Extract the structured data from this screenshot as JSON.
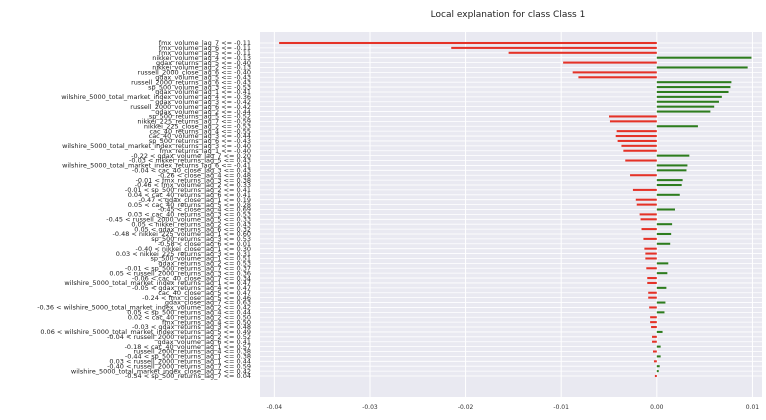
{
  "chart_data": {
    "type": "bar",
    "orientation": "horizontal",
    "title": "Local explanation for class Class 1",
    "xlabel": "",
    "ylabel": "",
    "xlim": [
      -0.0415,
      0.011
    ],
    "xticks": [
      -0.04,
      -0.03,
      -0.02,
      -0.01,
      0.0,
      0.01
    ],
    "xtick_labels": [
      "-0.04",
      "-0.03",
      "-0.02",
      "-0.01",
      "0.00",
      "0.01"
    ],
    "grid": true,
    "positive_color": "#2e7d1e",
    "negative_color": "#e53227",
    "background_color": "#e9e9f1",
    "grid_color": "#ffffff",
    "categories": [
      "fmx_volume_lag_7 <= -0.11",
      "fmx_volume_lag_6 <= -0.11",
      "fmx_volume_lag_5 <= -0.11",
      "nikkei_volume_lag_4 <= -0.13",
      "gdax_returns_lag_5 <= -0.40",
      "nikkei_volume_lag_2 <= -0.13",
      "russell_2000_close_lag_6 <= -0.40",
      "gdax_volume_lag_5 <= -0.43",
      "russell_2000_returns_lag_6 <= -0.43",
      "sp_500_volume_lag_3 <= -0.53",
      "gdax_volume_lag_1 <= -0.41",
      "wilshire_5000_total_market_index_volume_lag_4 <= -0.36",
      "gdax_volume_lag_3 <= -0.42",
      "russell_2000_volume_lag_6 <= -0.42",
      "gdax_volume_lag_2 <= -0.44",
      "sp_500_returns_lag_5 <= -0.52",
      "nikkei_225_returns_lag_7 <= -0.59",
      "nikkei_225_close_lag_2 <= -0.53",
      "cac_40_returns_lag_4 <= -0.55",
      "cac_40_volume_lag_3 <= -0.44",
      "sp_500_returns_lag_6 <= -0.43",
      "wilshire_5000_total_market_index_returns_lag_3 <= -0.40",
      "fmx_returns_lag_1 <= -0.40",
      "-0.22 < gdax_volume_lag_7 <= 0.20",
      "-0.03 < nikkei_returns_lag_5 <= 0.43",
      "wilshire_5000_total_market_index_returns_lag_6 <= -0.41",
      "-0.04 < cac_40_close_lag_3 <= 0.43",
      "-0.26 < close_lag_4 <= 0.48",
      "-0.01 < fmx_returns_lag_3 <= 0.38",
      "-0.46 < fmx_volume_lag_2 <= 0.33",
      "-0.01 < sp_500_returns_lag_2 <= 0.41",
      "0.04 < cac_40_returns_lag_6 <= 0.41",
      "-0.47 < gdax_close_lag_1 <= 0.19",
      "0.05 < cac_40_returns_lag_5 <= 0.28",
      "-0.45 < close_lag_4 <= 0.69",
      "0.03 < cac_40_returns_lag_3 <= 0.53",
      "-0.45 < russell_2000_volume_lag_5 <= 0.33",
      "0.05 < nikkei_returns_lag_2 <= 0.43",
      "0.05 < gdax_returns_lag_6 <= 0.32",
      "-0.48 < nikkei_225_volume_lag_1 <= 0.60",
      "sp_500_returns_lag_3 <= 0.53",
      "-0.58 < close_lag_6 <= 0.01",
      "-0.40 < nikkei_close_lag_1 <= 0.30",
      "0.03 < nikkei_225_returns_lag_3 <= 0.31",
      "sp_500_volume_lag_1 <= 0.51",
      "gdax_returns_lag_2 <= 0.53",
      "-0.01 < sp_500_returns_lag_7 <= 0.37",
      "0.05 < russell_2000_returns_lag_3 <= 0.36",
      "-0.06 < cac_40_close_lag_7 <= 0.34",
      "wilshire_5000_total_market_index_returns_lag_1 <= 0.47",
      "-0.05 < gdax_returns_lag_4 <= 0.47",
      "cac_40_close_lag_5 <= 0.47",
      "-0.24 < fmx_close_lag_5 <= 0.46",
      "gdax_close_lag_7 <= 0.63",
      "-0.36 < wilshire_5000_total_market_index_volume_lag_2 <= 0.42",
      "0.05 < sp_500_returns_lag_4 <= 0.44",
      "0.02 < cac_40_returns_lag_2 <= 0.50",
      "fmx_returns_lag_4 <= 0.50",
      "-0.03 < gdax_returns_lag_3 <= 0.48",
      "0.06 < wilshire_5000_total_market_index_returns_lag_5 <= 0.49",
      "-0.04 < russell_2000_returns_lag_2 <= 0.52",
      "gdax_volume_lag_6 <= 0.41",
      "-0.18 < cac_40_volume_lag_1 <= 0.57",
      "russell_2000_returns_lag_4 <= 0.38",
      "-0.44 < sp_500_returns_lag_1 <= 0.38",
      "0.03 < russell_2000_returns_lag_1 <= 0.44",
      "-0.40 < russell_2000_returns_lag_7 <= 0.59",
      "wilshire_5000_total_market_index_close_lag_7 <= 0.42",
      "-0.54 < sp_500_returns_lag_7 <= 0.04"
    ],
    "values": [
      -0.0395,
      -0.0215,
      -0.0155,
      0.0099,
      -0.0098,
      0.0095,
      -0.0088,
      -0.0082,
      0.0078,
      0.0077,
      0.0075,
      0.0068,
      0.0065,
      0.006,
      0.0056,
      -0.005,
      -0.0049,
      0.0043,
      -0.0042,
      -0.0043,
      -0.0041,
      -0.0037,
      -0.0035,
      0.0034,
      -0.0033,
      0.0032,
      0.0031,
      -0.0028,
      0.0027,
      0.0026,
      -0.0025,
      0.0024,
      -0.0022,
      -0.0021,
      0.0019,
      -0.0018,
      -0.0017,
      0.0016,
      -0.0016,
      0.0015,
      -0.0014,
      0.0014,
      -0.0013,
      -0.0012,
      -0.0012,
      0.0012,
      -0.0011,
      0.0011,
      -0.001,
      -0.001,
      0.001,
      -0.0009,
      -0.0009,
      0.0009,
      -0.0008,
      0.0008,
      -0.0007,
      -0.0007,
      -0.0006,
      0.0006,
      -0.0005,
      -0.0005,
      0.0004,
      -0.0004,
      0.0004,
      -0.0003,
      0.0003,
      0.0002,
      -0.0002
    ]
  }
}
